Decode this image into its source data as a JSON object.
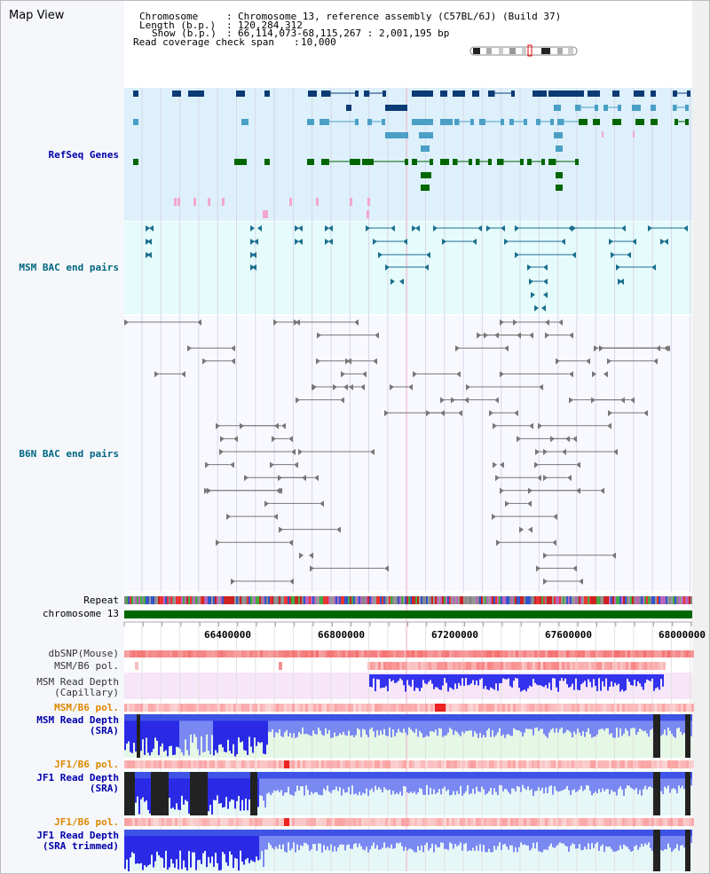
{
  "header": {
    "title": "Map View",
    "chromosome_key": "Chromosome",
    "chromosome_value": "Chromosome 13, reference assembly (C57BL/6J) (Build 37)",
    "length_key": "Length (b.p.)",
    "length_value": "120,284,312",
    "show_key": "Show (b.p.)",
    "show_value": "66,114,073-68,115,267 : 2,001,195 bp",
    "coverage_key": "Read coverage check span",
    "coverage_value": "10,000"
  },
  "tracks": {
    "refseq": "RefSeq Genes",
    "msm_bac": "MSM BAC end pairs",
    "b6n_bac": "B6N BAC end pairs",
    "repeat": "Repeat",
    "chromosome": "chromosome 13",
    "dbsnp": "dbSNP(Mouse)",
    "msm_b6_pol_1": "MSM/B6 pol.",
    "msm_depth_cap_1": "MSM Read Depth",
    "msm_depth_cap_2": "(Capillary)",
    "msm_b6_pol_2": "MSM/B6 pol.",
    "msm_depth_sra_1": "MSM Read Depth",
    "msm_depth_sra_2": "(SRA)",
    "jf1_b6_pol_1": "JF1/B6 pol.",
    "jf1_depth_sra_1": "JF1 Read Depth",
    "jf1_depth_sra_2": "(SRA)",
    "jf1_b6_pol_2": "JF1/B6 pol.",
    "jf1_depth_trim_1": "JF1 Read Depth",
    "jf1_depth_trim_2": "(SRA trimmed)"
  },
  "axis_ticks": [
    "66400000",
    "66800000",
    "67200000",
    "67600000",
    "68000000"
  ],
  "colors": {
    "refseq_bg": "#ddf0fb",
    "bac_bg": "#e6fbfb",
    "gene_dark": "#0c3a74",
    "gene_mid": "#4a9fc5",
    "gene_green": "#006600",
    "chromosome_bar": "#006600",
    "label_blue": "#0000aa",
    "label_teal": "#006680",
    "label_orange": "#dd8800",
    "depth_blue": "#3333ee"
  }
}
